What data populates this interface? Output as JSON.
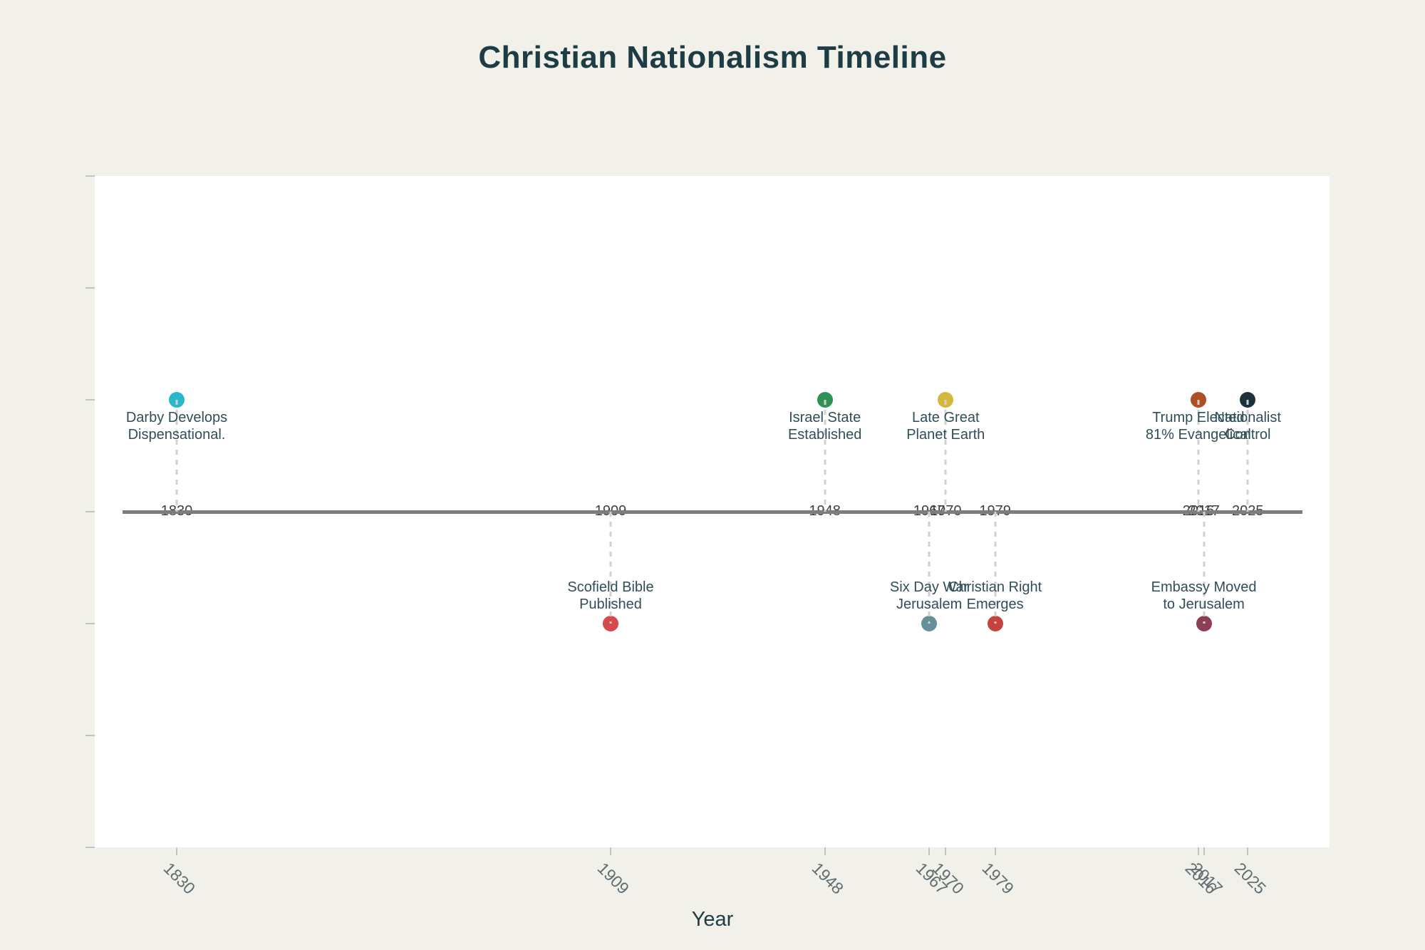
{
  "page": {
    "title": "Christian Nationalism Timeline",
    "xlabel": "Year"
  },
  "palette": {
    "background": "#f1f0e9",
    "plot_bg": "#ffffff",
    "timeline": "#7d7d7d",
    "connector": "#d0d0d0",
    "title_text": "#1e3c44",
    "event_text": "#2f4e57",
    "year_on_line_text": "#3f3f3f",
    "tick_label_text": "#5e6d73",
    "tick_mark": "#c3c3c3"
  },
  "chart_data": {
    "type": "scatter",
    "subtype": "timeline",
    "title": "Christian Nationalism Timeline",
    "xlabel": "Year",
    "ylabel": "",
    "grid": false,
    "legend": false,
    "x_axis": {
      "tick_years": [
        1830,
        1909,
        1948,
        1967,
        1970,
        1979,
        2016,
        2017,
        2025
      ],
      "range_years": [
        1815,
        2040
      ],
      "tick_label_rotation_deg": 45
    },
    "y_axis": {
      "levels": [
        -3,
        -2,
        -1,
        0,
        1,
        2,
        3
      ],
      "baseline_level": 0,
      "tick_labels_visible": false
    },
    "events": [
      {
        "year": 1830,
        "level": 1,
        "side": "above",
        "label": [
          "Darby Develops",
          "Dispensational."
        ],
        "color": "#29b7c9"
      },
      {
        "year": 1909,
        "level": -1,
        "side": "below",
        "label": [
          "Scofield Bible",
          "Published"
        ],
        "color": "#d64849"
      },
      {
        "year": 1948,
        "level": 1,
        "side": "above",
        "label": [
          "Israel State",
          "Established"
        ],
        "color": "#2e9156"
      },
      {
        "year": 1967,
        "level": -1,
        "side": "below",
        "label": [
          "Six Day War",
          "Jerusalem"
        ],
        "color": "#648f98"
      },
      {
        "year": 1970,
        "level": 1,
        "side": "above",
        "label": [
          "Late Great",
          "Planet Earth"
        ],
        "color": "#d4b83e"
      },
      {
        "year": 1979,
        "level": -1,
        "side": "below",
        "label": [
          "Christian Right",
          "Emerges"
        ],
        "color": "#c5423e"
      },
      {
        "year": 2016,
        "level": 1,
        "side": "above",
        "label": [
          "Trump Elected",
          "81% Evangelical"
        ],
        "color": "#ad5026"
      },
      {
        "year": 2017,
        "level": -1,
        "side": "below",
        "label": [
          "Embassy Moved",
          "to Jerusalem"
        ],
        "color": "#8d3e54"
      },
      {
        "year": 2025,
        "level": 1,
        "side": "above",
        "label": [
          "Nationalist",
          "Control"
        ],
        "color": "#1b323c"
      }
    ],
    "year_annotations_on_line": [
      "1830",
      "1909",
      "1948",
      "1967",
      "1970",
      "1979",
      "2016",
      "2017",
      "2025"
    ]
  }
}
